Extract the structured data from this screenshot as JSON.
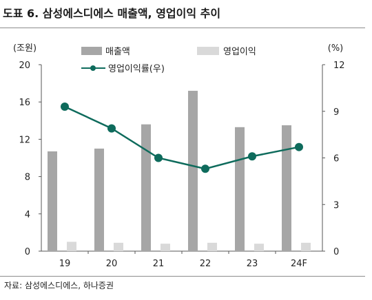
{
  "figure": {
    "title": "도표 6. 삼성에스디에스 매출액, 영업이익 추이",
    "source": "자료: 삼성에스디에스, 하나증권"
  },
  "chart_data": {
    "type": "bar",
    "categories": [
      "19",
      "20",
      "21",
      "22",
      "23",
      "24F"
    ],
    "series": [
      {
        "name": "매출액",
        "type": "bar",
        "axis": "left",
        "color": "#a6a6a6",
        "values": [
          10.7,
          11.0,
          13.6,
          17.2,
          13.3,
          13.5
        ]
      },
      {
        "name": "영업이익",
        "type": "bar",
        "axis": "left",
        "color": "#d9d9d9",
        "values": [
          1.0,
          0.9,
          0.8,
          0.9,
          0.8,
          0.9
        ]
      },
      {
        "name": "영업이익률(우)",
        "type": "line",
        "axis": "right",
        "color": "#0e6b5c",
        "values": [
          9.3,
          7.9,
          6.0,
          5.3,
          6.1,
          6.7
        ]
      }
    ],
    "left_axis": {
      "unit_label": "(조원)",
      "ylim": [
        0,
        20
      ],
      "ticks": [
        "0",
        "4",
        "8",
        "12",
        "16",
        "20"
      ]
    },
    "right_axis": {
      "unit_label": "(%)",
      "ylim": [
        0,
        12
      ],
      "ticks": [
        "0",
        "3",
        "6",
        "9",
        "12"
      ]
    },
    "legend": {
      "placement": "top"
    },
    "grid": false
  }
}
